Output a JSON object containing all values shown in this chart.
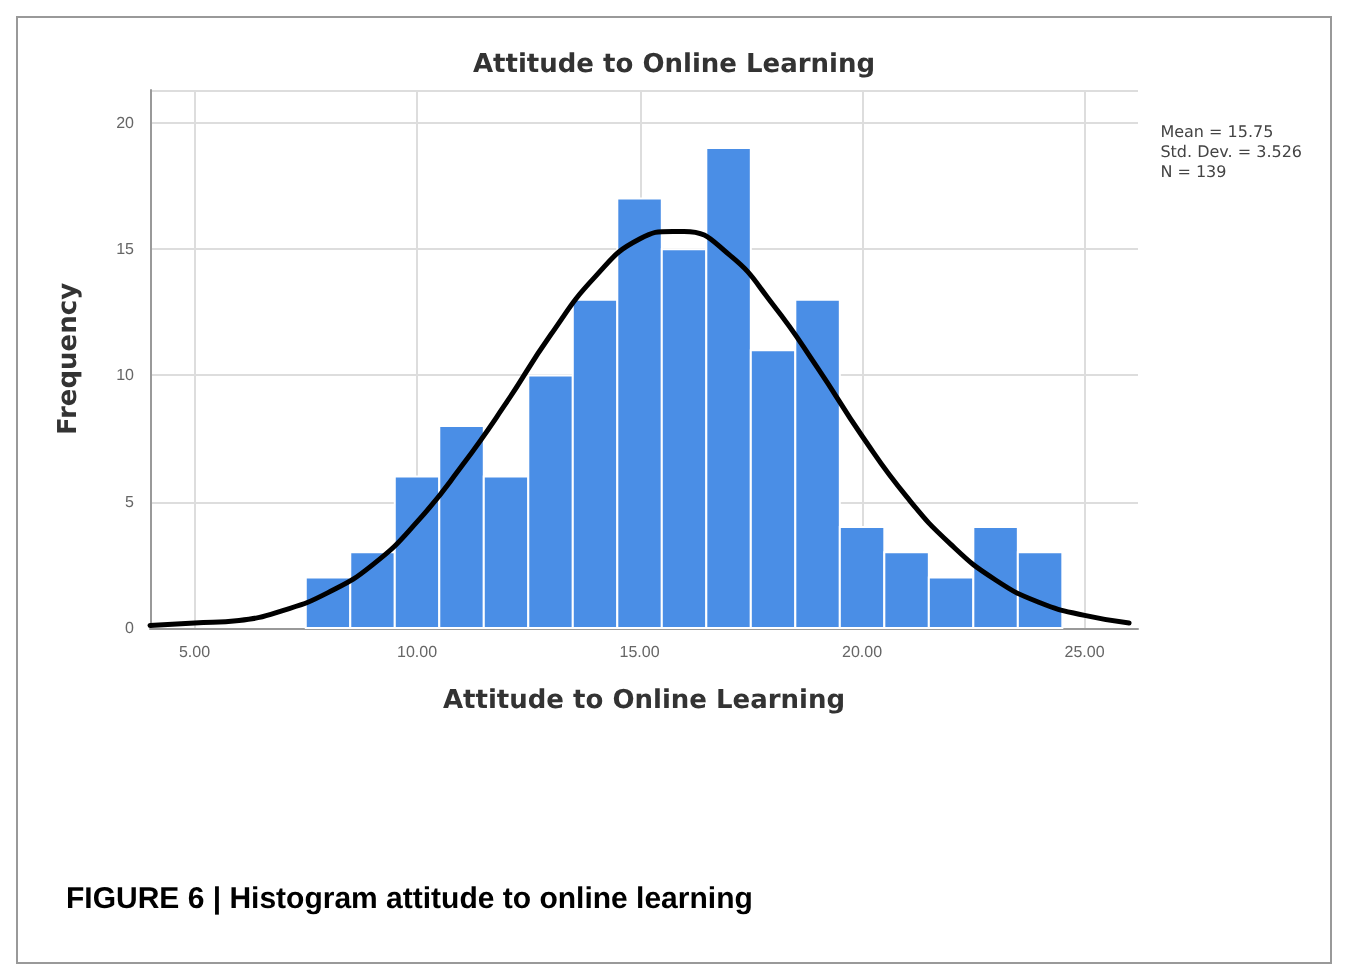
{
  "chart_data": {
    "type": "histogram",
    "title": "Attitude to Online Learning",
    "xlabel": "Attitude to Online Learning",
    "ylabel": "Frequency",
    "bins": [
      7.5,
      8.5,
      9.5,
      10.5,
      11.5,
      12.5,
      13.5,
      14.5,
      15.5,
      16.5,
      17.5,
      18.5,
      19.5,
      20.5,
      21.5,
      22.5,
      23.5,
      24.5
    ],
    "values": [
      2,
      3,
      6,
      8,
      6,
      10,
      13,
      17,
      15,
      19,
      11,
      13,
      4,
      3,
      2,
      4,
      3
    ],
    "color": "#4a8ee6",
    "series": [
      {
        "type": "line",
        "color": "#000000",
        "x": [
          4,
          5,
          6,
          7,
          8,
          9,
          10,
          11,
          12,
          13,
          14,
          15,
          15.75,
          16,
          17,
          18,
          19,
          20,
          21,
          22,
          23,
          24,
          25,
          26
        ],
        "values": [
          0.1,
          0.2,
          0.3,
          0.7,
          1.4,
          2.5,
          4.2,
          6.4,
          8.9,
          11.6,
          13.9,
          15.4,
          15.7,
          15.7,
          14.8,
          12.8,
          10.3,
          7.6,
          5.2,
          3.3,
          1.9,
          1.0,
          0.5,
          0.2
        ]
      }
    ],
    "xlim": [
      4,
      26.2
    ],
    "ylim": [
      0,
      21.3
    ],
    "xticks": [
      {
        "value": 5,
        "label": "5.00"
      },
      {
        "value": 10,
        "label": "10.00"
      },
      {
        "value": 15,
        "label": "15.00"
      },
      {
        "value": 20,
        "label": "20.00"
      },
      {
        "value": 25,
        "label": "25.00"
      }
    ],
    "yticks": [
      0,
      5,
      10,
      15,
      20
    ],
    "grid": true,
    "line_style": "solid",
    "marker": "none",
    "annotations": [
      "Mean = 15.75",
      "Std. Dev. = 3.526",
      "N = 139",
      "FIGURE 6 | Histogram attitude to online learning"
    ]
  }
}
